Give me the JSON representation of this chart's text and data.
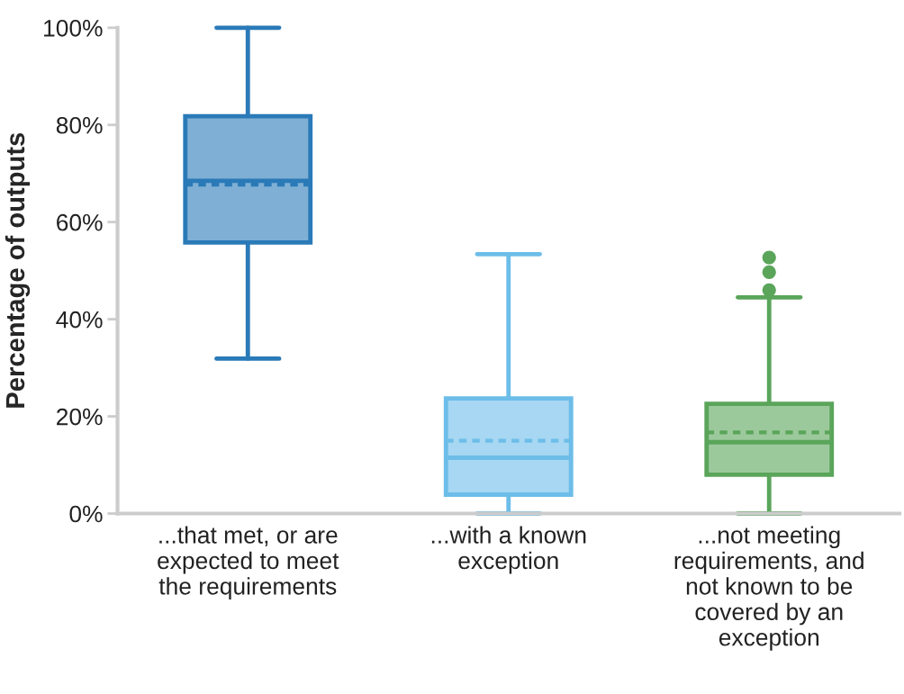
{
  "chart_data": {
    "type": "box",
    "ylabel": "Percentage of outputs",
    "categories": [
      "...that met, or are\nexpected to meet\nthe requirements",
      "...with a known\nexception",
      "...not meeting\nrequirements, and\nnot known to be\ncovered by an\nexception"
    ],
    "boxes": [
      {
        "low": 31.9,
        "q1": 55.8,
        "median": 68.5,
        "q3": 81.8,
        "high": 100,
        "mean": 67.7
      },
      {
        "low": 0,
        "q1": 3.9,
        "median": 11.5,
        "q3": 23.7,
        "high": 53.4,
        "mean": 15.0
      },
      {
        "low": 0,
        "q1": 8.0,
        "median": 14.7,
        "q3": 22.6,
        "high": 44.5,
        "mean": 16.7,
        "outliers": [
          46.0,
          49.7,
          52.7
        ]
      }
    ],
    "colors": [
      "#2a7ab8",
      "#6dbde9",
      "#5aa55a"
    ],
    "ylim": [
      0,
      100
    ],
    "yticks": [
      {
        "value": 0,
        "label": "0%"
      },
      {
        "value": 20,
        "label": "20%"
      },
      {
        "value": 40,
        "label": "40%"
      },
      {
        "value": 60,
        "label": "60%"
      },
      {
        "value": 80,
        "label": "80%"
      },
      {
        "value": 100,
        "label": "100%"
      }
    ],
    "grid": false,
    "legend": false
  }
}
